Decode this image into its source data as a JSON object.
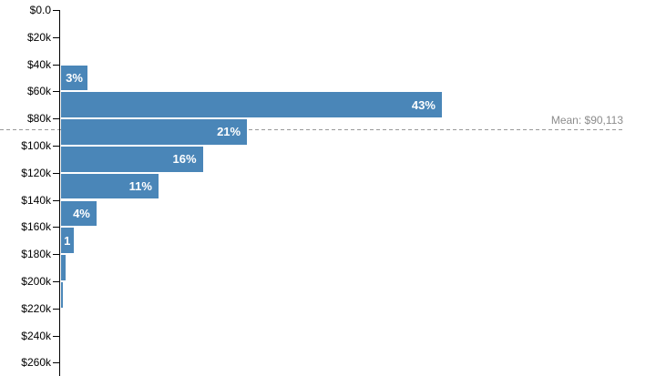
{
  "chart_data": {
    "type": "bar",
    "orientation": "horizontal",
    "title": "",
    "xlabel": "",
    "ylabel": "",
    "grid": false,
    "legend": null,
    "y_axis": {
      "tick_labels": [
        "$0.0",
        "$20k",
        "$40k",
        "$60k",
        "$80k",
        "$100k",
        "$120k",
        "$140k",
        "$160k",
        "$180k",
        "$200k",
        "$220k",
        "$240k",
        "$260k"
      ],
      "tick_values": [
        0,
        20000,
        40000,
        60000,
        80000,
        100000,
        120000,
        140000,
        160000,
        180000,
        200000,
        220000,
        240000,
        260000
      ],
      "range": [
        0,
        260000
      ],
      "bin_size": 20000
    },
    "x_axis": {
      "unit": "percent",
      "range": [
        0,
        45
      ],
      "visible": false
    },
    "bins": [
      {
        "range_start": 0,
        "range_end": 20000,
        "pct": 0,
        "label": ""
      },
      {
        "range_start": 20000,
        "range_end": 40000,
        "pct": 0,
        "label": ""
      },
      {
        "range_start": 40000,
        "range_end": 60000,
        "pct": 3,
        "label": "3%"
      },
      {
        "range_start": 60000,
        "range_end": 80000,
        "pct": 43,
        "label": "43%"
      },
      {
        "range_start": 80000,
        "range_end": 100000,
        "pct": 21,
        "label": "21%"
      },
      {
        "range_start": 100000,
        "range_end": 120000,
        "pct": 16,
        "label": "16%"
      },
      {
        "range_start": 120000,
        "range_end": 140000,
        "pct": 11,
        "label": "11%"
      },
      {
        "range_start": 140000,
        "range_end": 160000,
        "pct": 4,
        "label": "4%"
      },
      {
        "range_start": 160000,
        "range_end": 180000,
        "pct": 1.4,
        "label": "1"
      },
      {
        "range_start": 180000,
        "range_end": 200000,
        "pct": 0.5,
        "label": ""
      },
      {
        "range_start": 200000,
        "range_end": 220000,
        "pct": 0.15,
        "label": ""
      },
      {
        "range_start": 220000,
        "range_end": 240000,
        "pct": 0,
        "label": ""
      },
      {
        "range_start": 240000,
        "range_end": 260000,
        "pct": 0,
        "label": ""
      }
    ],
    "mean": {
      "value": 90113,
      "label": "Mean: $90,113"
    },
    "colors": {
      "bar": "#4a86b8",
      "bar_label": "#ffffff",
      "axis": "#000000",
      "tick_label": "#000000",
      "mean_line": "#999999",
      "mean_label": "#8c8c8c",
      "background": "#ffffff"
    }
  }
}
